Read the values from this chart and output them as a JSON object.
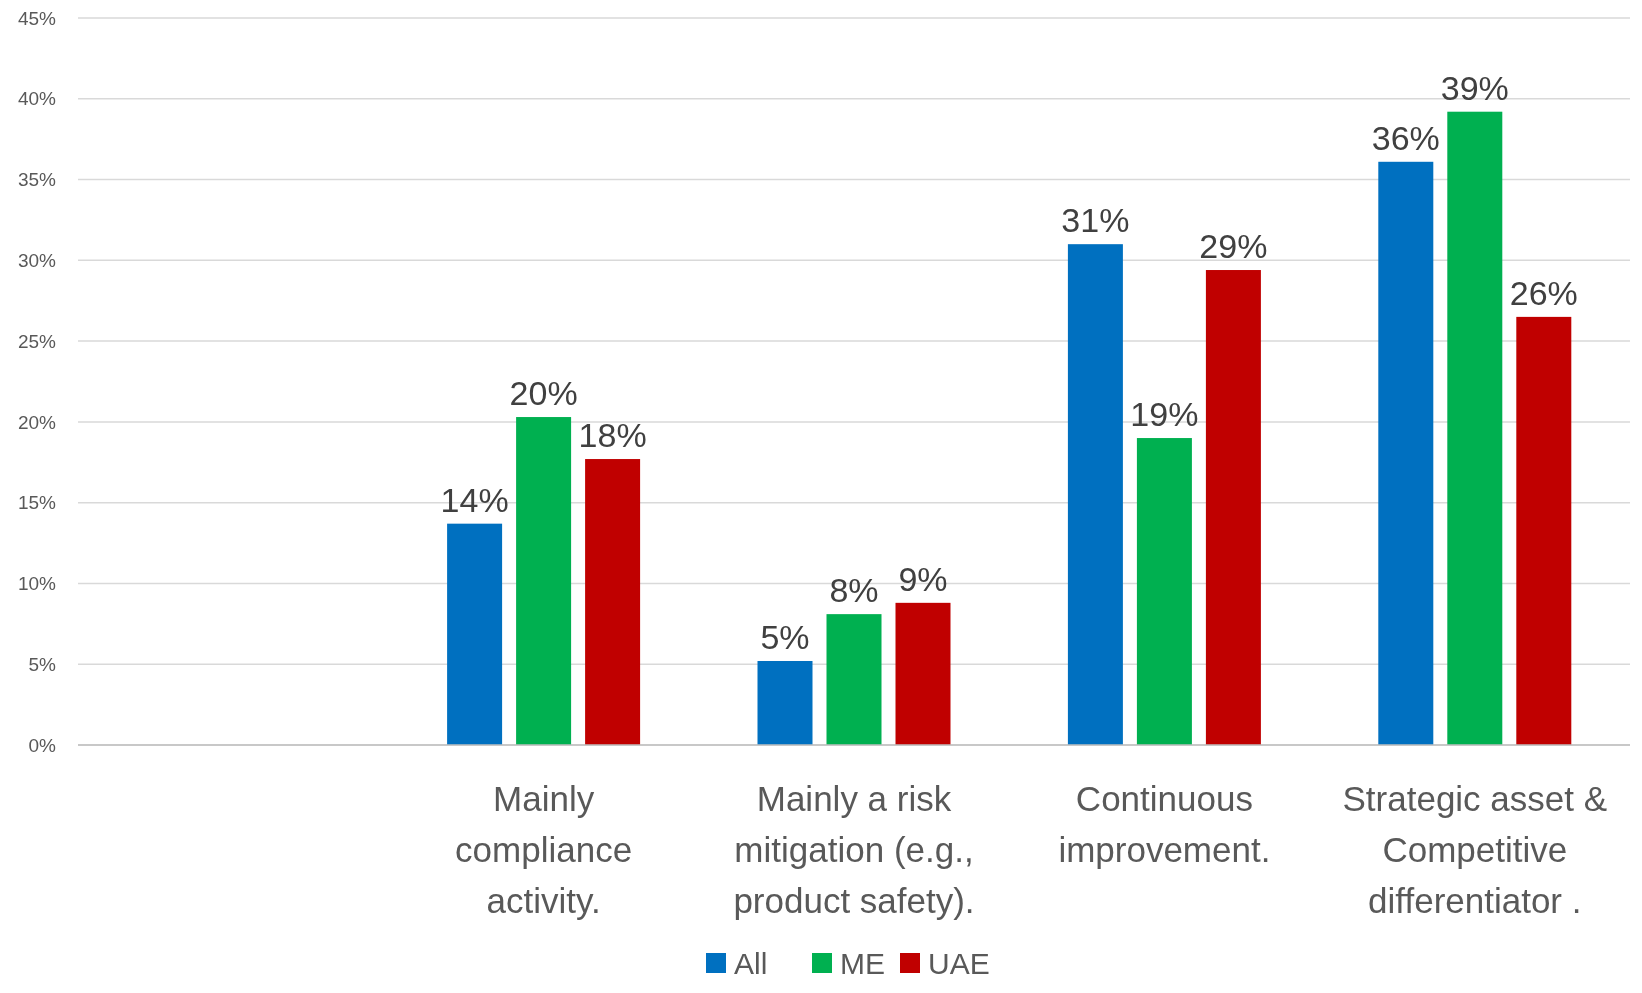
{
  "chart_data": {
    "type": "bar",
    "categories": [
      null,
      "Mainly\ncompliance\nactivity.",
      "Mainly a risk\nmitigation  (e.g.,\nproduct safety).",
      "Continuous\nimprovement.",
      "Strategic asset &\nCompetitive\ndifferentiator ."
    ],
    "series": [
      {
        "name": "All",
        "color": "#0070c0",
        "values": [
          null,
          13.7,
          5.2,
          31,
          36.1
        ],
        "value_labels": [
          null,
          "14%",
          "5%",
          "31%",
          "36%"
        ]
      },
      {
        "name": "ME",
        "color": "#00b050",
        "values": [
          null,
          20.3,
          8.1,
          19,
          39.2
        ],
        "value_labels": [
          null,
          "20%",
          "8%",
          "19%",
          "39%"
        ]
      },
      {
        "name": "UAE",
        "color": "#c00000",
        "values": [
          null,
          17.7,
          8.8,
          29.4,
          26.5
        ],
        "value_labels": [
          null,
          "18%",
          "9%",
          "29%",
          "26%"
        ]
      }
    ],
    "ylim": [
      0,
      45
    ],
    "yticks": [
      {
        "value": 0,
        "label": "0%"
      },
      {
        "value": 5,
        "label": "5%"
      },
      {
        "value": 10,
        "label": "10%"
      },
      {
        "value": 15,
        "label": "15%"
      },
      {
        "value": 20,
        "label": "20%"
      },
      {
        "value": 25,
        "label": "25%"
      },
      {
        "value": 30,
        "label": "30%"
      },
      {
        "value": 35,
        "label": "35%"
      },
      {
        "value": 40,
        "label": "40%"
      },
      {
        "value": 45,
        "label": "45%"
      }
    ],
    "grid": "y",
    "legend": "bottom"
  }
}
